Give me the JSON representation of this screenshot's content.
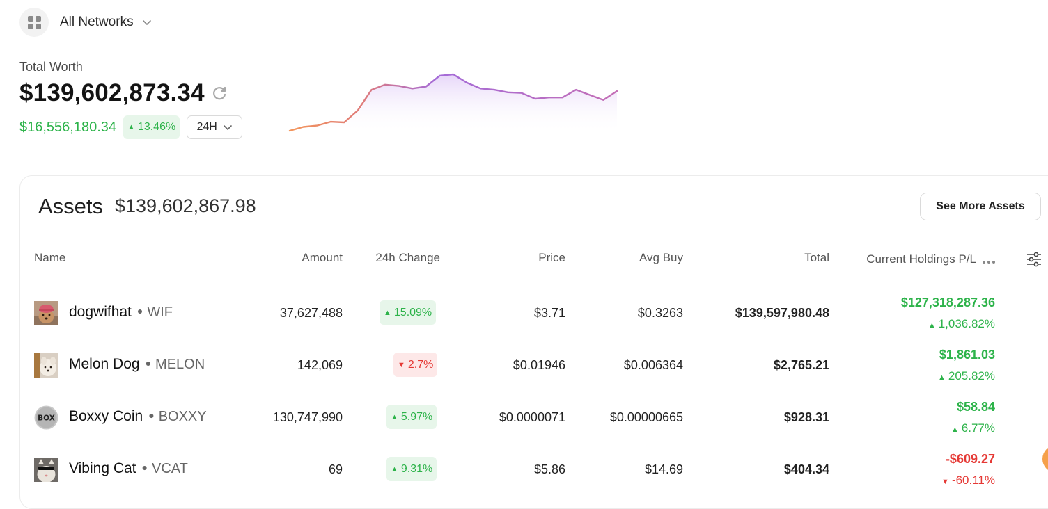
{
  "network": {
    "label": "All Networks",
    "icon": "grid-icon"
  },
  "total_worth": {
    "label": "Total Worth",
    "value": "$139,602,873.34",
    "change": "$16,556,180.34",
    "change_pct": "13.46%",
    "period": "24H"
  },
  "colors": {
    "positive": "#2db34a",
    "negative": "#e53935",
    "positive_bg": "#e7f6ea",
    "negative_bg": "#fde8e8",
    "spark_start": "#f3955a",
    "spark_end": "#a46bd8"
  },
  "sparkline": [
    0.0,
    0.06,
    0.08,
    0.14,
    0.13,
    0.32,
    0.64,
    0.72,
    0.7,
    0.66,
    0.69,
    0.86,
    0.88,
    0.75,
    0.66,
    0.64,
    0.6,
    0.59,
    0.5,
    0.52,
    0.52,
    0.64,
    0.56,
    0.48,
    0.62
  ],
  "assets": {
    "title": "Assets",
    "total": "$139,602,867.98",
    "see_more": "See More Assets",
    "columns": {
      "name": "Name",
      "amount": "Amount",
      "change": "24h Change",
      "price": "Price",
      "avg_buy": "Avg Buy",
      "total": "Total",
      "pnl": "Current Holdings P/L"
    },
    "rows": [
      {
        "name": "dogwifhat",
        "symbol": "WIF",
        "amount": "37,627,488",
        "change": "15.09%",
        "change_dir": "up",
        "price": "$3.71",
        "avg_buy": "$0.3263",
        "total": "$139,597,980.48",
        "pnl_value": "$127,318,287.36",
        "pnl_pct": "1,036.82%",
        "pnl_dir": "up",
        "avatar": "dog-hat-avatar"
      },
      {
        "name": "Melon Dog",
        "symbol": "MELON",
        "amount": "142,069",
        "change": "2.7%",
        "change_dir": "down",
        "price": "$0.01946",
        "avg_buy": "$0.006364",
        "total": "$2,765.21",
        "pnl_value": "$1,861.03",
        "pnl_pct": "205.82%",
        "pnl_dir": "up",
        "avatar": "melon-dog-avatar"
      },
      {
        "name": "Boxxy Coin",
        "symbol": "BOXXY",
        "amount": "130,747,990",
        "change": "5.97%",
        "change_dir": "up",
        "price": "$0.0000071",
        "avg_buy": "$0.00000665",
        "total": "$928.31",
        "pnl_value": "$58.84",
        "pnl_pct": "6.77%",
        "pnl_dir": "up",
        "avatar": "box-avatar",
        "avatar_text": "BOX"
      },
      {
        "name": "Vibing Cat",
        "symbol": "VCAT",
        "amount": "69",
        "change": "9.31%",
        "change_dir": "up",
        "price": "$5.86",
        "avg_buy": "$14.69",
        "total": "$404.34",
        "pnl_value": "-$609.27",
        "pnl_pct": "-60.11%",
        "pnl_dir": "down",
        "avatar": "cat-avatar"
      }
    ]
  }
}
